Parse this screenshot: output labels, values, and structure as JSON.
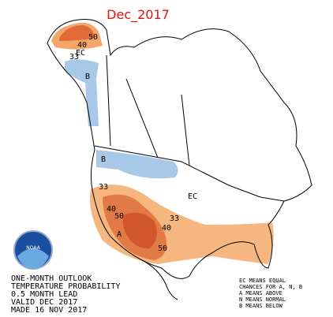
{
  "title": "Dec_2017",
  "contour_labels": [
    "50",
    "40",
    "33",
    "EC",
    "B",
    "B",
    "33",
    "40",
    "50",
    "A",
    "33",
    "40",
    "50",
    "EC"
  ],
  "logo": "NOAA",
  "info": [
    "ONE-MONTH OUTLOOK",
    "TEMPERATURE PROBABILITY",
    "0.5 MONTH LEAD",
    "VALID DEC 2017",
    "MADE 16 NOV 2017"
  ],
  "legend": [
    "EC MEANS EQUAL",
    "CHANCES FOR A, N, B",
    "A MEANS ABOVE",
    "N MEANS NORMAL",
    "B MEANS BELOW"
  ]
}
